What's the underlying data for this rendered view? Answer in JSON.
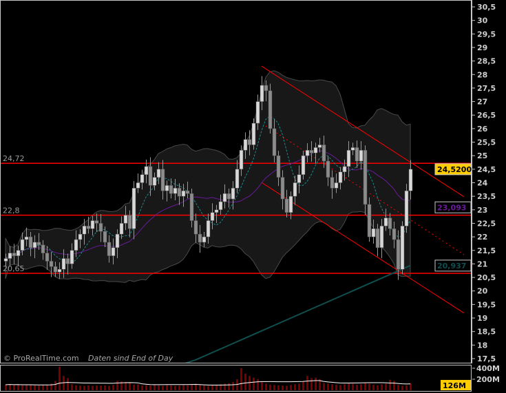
{
  "watermark": {
    "brand": "© ProRealTime.com",
    "note": "Daten sind End of Day"
  },
  "colors": {
    "background": "#000000",
    "up_candle": "#d8d8d8",
    "down_candle": "#8c8c8c",
    "level_line": "#ff0000",
    "channel": "#ff0000",
    "band_fill": "#181818",
    "band_edge": "#4a4a4a",
    "ma_short": "#1e8c8c",
    "ma_mid": "#6a1a9a",
    "ma_long": "#0f4f4f",
    "volume_bar": "#7a0000",
    "volume_avg": "#ffffff",
    "last_price_bg": "#ffcc00"
  },
  "chart_data": {
    "type": "candlestick",
    "ylim": [
      17.5,
      30.5
    ],
    "y_ticks": [
      "30,5",
      "30",
      "29,5",
      "29",
      "28,5",
      "28",
      "27,5",
      "27",
      "26,5",
      "26",
      "25,5",
      "25",
      "24,5",
      "24",
      "23,5",
      "23",
      "22,5",
      "22",
      "21,5",
      "21",
      "20,5",
      "20",
      "19,5",
      "19",
      "18,5",
      "18",
      "17,5"
    ],
    "closes": [
      21.2,
      21.4,
      21.3,
      21.5,
      21.9,
      22.0,
      21.6,
      21.8,
      21.7,
      21.4,
      21.1,
      20.9,
      20.7,
      20.8,
      21.2,
      21.0,
      21.5,
      21.9,
      22.1,
      22.4,
      22.3,
      22.6,
      22.5,
      22.2,
      21.8,
      21.3,
      21.6,
      22.1,
      22.5,
      22.8,
      22.3,
      23.8,
      24.0,
      24.3,
      24.6,
      23.9,
      24.2,
      24.5,
      23.7,
      23.9,
      23.6,
      23.8,
      23.5,
      23.7,
      23.6,
      22.6,
      22.1,
      21.8,
      22.0,
      22.6,
      22.9,
      23.0,
      23.3,
      23.6,
      23.4,
      23.8,
      24.5,
      25.2,
      25.6,
      25.4,
      26.2,
      27.0,
      27.6,
      27.4,
      26.0,
      25.0,
      24.2,
      23.4,
      22.9,
      23.5,
      24.0,
      24.3,
      25.0,
      25.2,
      25.1,
      25.3,
      25.4,
      24.8,
      24.2,
      23.8,
      24.0,
      24.4,
      24.6,
      25.2,
      25.3,
      24.8,
      25.2,
      23.2,
      22.0,
      22.3,
      21.6,
      22.4,
      22.7,
      22.3,
      21.9,
      20.8,
      22.4,
      23.7,
      24.5
    ],
    "levels": [
      {
        "label": "24,72",
        "value": 24.72
      },
      {
        "label": "22,8",
        "value": 22.8
      },
      {
        "label": "20,65",
        "value": 20.65
      }
    ],
    "channel": [
      {
        "style": "solid",
        "from": [
          62,
          28.31
        ],
        "to": [
          111,
          23.48
        ]
      },
      {
        "style": "dotted",
        "from": [
          63,
          26.1
        ],
        "to": [
          111,
          21.34
        ]
      },
      {
        "style": "solid",
        "from": [
          62,
          24.01
        ],
        "to": [
          111,
          19.18
        ]
      }
    ],
    "long_ma": {
      "from": [
        46,
        17.45
      ],
      "to": [
        98,
        20.94
      ]
    },
    "price_labels": {
      "last": "24,5200",
      "ma_mid": "23,093",
      "ma_long": "20,937"
    },
    "volume": {
      "unit": "M",
      "ticks": [
        "400M",
        "200M"
      ],
      "last_label": "126M",
      "values": [
        100,
        110,
        95,
        105,
        90,
        100,
        95,
        90,
        85,
        95,
        100,
        120,
        170,
        430,
        260,
        220,
        110,
        90,
        85,
        80,
        90,
        80,
        85,
        85,
        90,
        80,
        95,
        170,
        160,
        150,
        130,
        100,
        110,
        85,
        95,
        85,
        100,
        90,
        80,
        95,
        90,
        80,
        85,
        95,
        90,
        110,
        120,
        100,
        85,
        80,
        90,
        95,
        110,
        120,
        130,
        150,
        200,
        400,
        300,
        260,
        230,
        200,
        150,
        120,
        100,
        95,
        90,
        85,
        80,
        95,
        110,
        120,
        150,
        260,
        220,
        230,
        200,
        130,
        120,
        110,
        100,
        95,
        110,
        130,
        120,
        100,
        110,
        130,
        120,
        100,
        90,
        110,
        120,
        190,
        170,
        100,
        80,
        90,
        126
      ]
    }
  }
}
